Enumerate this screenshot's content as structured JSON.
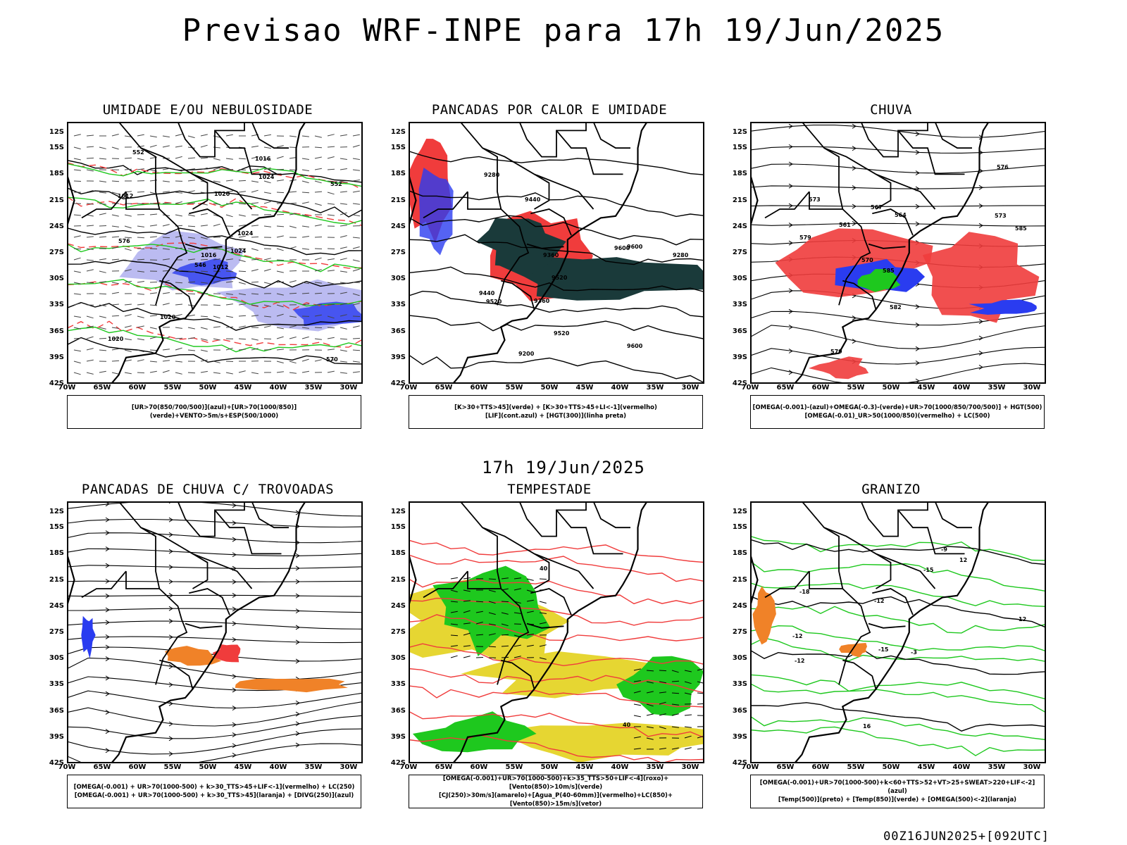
{
  "title": "Previsao WRF-INPE  para 17h 19/Jun/2025",
  "middle_time": "17h 19/Jun/2025",
  "footer": "00Z16JUN2025+[092UTC]",
  "axes": {
    "lat_labels": [
      "12S",
      "15S",
      "18S",
      "21S",
      "24S",
      "27S",
      "30S",
      "33S",
      "36S",
      "39S",
      "42S"
    ],
    "lon_labels": [
      "70W",
      "65W",
      "60W",
      "55W",
      "50W",
      "45W",
      "40W",
      "35W",
      "30W"
    ]
  },
  "panels": [
    {
      "title": "UMIDADE E/OU NEBULOSIDADE",
      "legend": [
        "[UR>70(850/700/500)](azul)+[UR>70(1000/850)](verde)+VENTO>5m/s+ESP(500/1000)"
      ],
      "contour_labels": [
        "1012",
        "1012",
        "1016",
        "1020",
        "1024",
        "1020",
        "1016",
        "1020",
        "1024",
        "1024",
        "552",
        "570",
        "576",
        "552",
        "546"
      ]
    },
    {
      "title": "PANCADAS POR CALOR E UMIDADE",
      "legend": [
        "[K>30+TTS>45](verde) + [K>30+TTS>45+LI<-1](vermelho)",
        "[LIF](cont.azul) + [HGT(300)](linha preta)"
      ],
      "contour_labels": [
        "9600",
        "9600",
        "9600",
        "9520",
        "9520",
        "9440",
        "9360",
        "9440",
        "9360",
        "9280",
        "9520",
        "9280",
        "9200"
      ]
    },
    {
      "title": "CHUVA",
      "legend": [
        "[OMEGA(-0.001)-(azul)+OMEGA(-0.3)-(verde)+UR>70(1000/850/700/500)] + HGT(500)",
        "[OMEGA(-0.01)_UR>50(1000/850)(vermelho) + LC(500)"
      ],
      "contour_labels": [
        "585",
        "585",
        "579",
        "573",
        "567",
        "582",
        "579",
        "576",
        "573",
        "570",
        "561",
        "564"
      ]
    },
    {
      "title": "PANCADAS DE CHUVA C/ TROVOADAS",
      "legend": [
        "[OMEGA(-0.001) + UR>70(1000-500) + k>30_TTS>45+LIF<-1](vermelho) + LC(250)",
        "[OMEGA(-0.001) + UR>70(1000-500) + k>30_TTS>45](laranja) + [DIVG(250)](azul)"
      ],
      "contour_labels": []
    },
    {
      "title": "TEMPESTADE",
      "legend": [
        "[OMEGA(-0.001)+UR>70(1000-500)+k>35_TTS>50+LIF<-4](roxo)+[Vento(850)>10m/s](verde)",
        "[CJ(250)>30m/s](amarelo)+[Agua_P(40-60mm)](vermelho)+LC(850)+[Vento(850)>15m/s](vetor)"
      ],
      "contour_labels": [
        "40",
        "40"
      ]
    },
    {
      "title": "GRANIZO",
      "legend": [
        "[OMEGA(-0.001)+UR>70(1000-500)+k<60+TTS>52+VT>25+SWEAT>220+LIF<-2](azul)",
        "[Temp(500)](preto) + [Temp(850)](verde) + [OMEGA(500)<-2](laranja)"
      ],
      "contour_labels": [
        "-9",
        "-15",
        "-18",
        "-12",
        "-12",
        "12",
        "-15",
        "12",
        "16",
        "-3",
        "-12"
      ]
    }
  ],
  "colors": {
    "light_blue": "#b4b4f0",
    "blue": "#2a3cf0",
    "green": "#1ec81e",
    "red": "#f03c3c",
    "dark_teal": "#1a3a3a",
    "yellow": "#e6d632",
    "orange": "#f08228",
    "black": "#000000"
  }
}
